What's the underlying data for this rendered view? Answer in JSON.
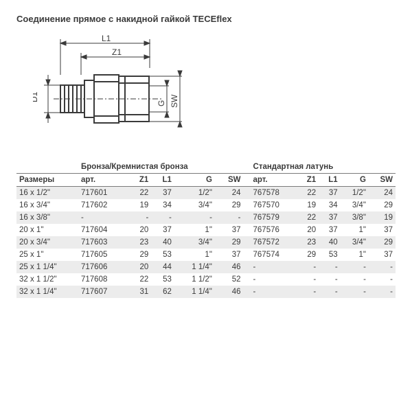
{
  "title": "Соединение прямое с накидной гайкой TECEflex",
  "diagram_labels": {
    "L1": "L1",
    "Z1": "Z1",
    "D1": "D1",
    "G": "G",
    "SW": "SW"
  },
  "headers": {
    "sizes": "Размеры",
    "group1": "Бронза/Кремнистая бронза",
    "group2": "Стандартная латунь",
    "art": "арт.",
    "Z1": "Z1",
    "L1": "L1",
    "G": "G",
    "SW": "SW"
  },
  "rows": [
    {
      "size": "16 x 1/2\"",
      "a": [
        "717601",
        "22",
        "37",
        "1/2\"",
        "24"
      ],
      "b": [
        "767578",
        "22",
        "37",
        "1/2\"",
        "24"
      ]
    },
    {
      "size": "16 x 3/4\"",
      "a": [
        "717602",
        "19",
        "34",
        "3/4\"",
        "29"
      ],
      "b": [
        "767570",
        "19",
        "34",
        "3/4\"",
        "29"
      ]
    },
    {
      "size": "16 x 3/8\"",
      "a": [
        "-",
        "-",
        "-",
        "-",
        "-"
      ],
      "b": [
        "767579",
        "22",
        "37",
        "3/8\"",
        "19"
      ]
    },
    {
      "size": "20 x 1\"",
      "a": [
        "717604",
        "20",
        "37",
        "1\"",
        "37"
      ],
      "b": [
        "767576",
        "20",
        "37",
        "1\"",
        "37"
      ]
    },
    {
      "size": "20 x 3/4\"",
      "a": [
        "717603",
        "23",
        "40",
        "3/4\"",
        "29"
      ],
      "b": [
        "767572",
        "23",
        "40",
        "3/4\"",
        "29"
      ]
    },
    {
      "size": "25 x 1\"",
      "a": [
        "717605",
        "29",
        "53",
        "1\"",
        "37"
      ],
      "b": [
        "767574",
        "29",
        "53",
        "1\"",
        "37"
      ]
    },
    {
      "size": "25 x 1 1/4\"",
      "a": [
        "717606",
        "20",
        "44",
        "1 1/4\"",
        "46"
      ],
      "b": [
        "-",
        "-",
        "-",
        "-",
        "-"
      ]
    },
    {
      "size": "32 x 1 1/2\"",
      "a": [
        "717608",
        "22",
        "53",
        "1 1/2\"",
        "52"
      ],
      "b": [
        "-",
        "-",
        "-",
        "-",
        "-"
      ]
    },
    {
      "size": "32 x 1 1/4\"",
      "a": [
        "717607",
        "31",
        "62",
        "1 1/4\"",
        "46"
      ],
      "b": [
        "-",
        "-",
        "-",
        "-",
        "-"
      ]
    }
  ],
  "style": {
    "zebra_bg": "#ececec",
    "border_color": "#7a7a7a",
    "text_color": "#3a3a3a",
    "font_size_pt": 11.5,
    "title_font_size_pt": 13
  }
}
